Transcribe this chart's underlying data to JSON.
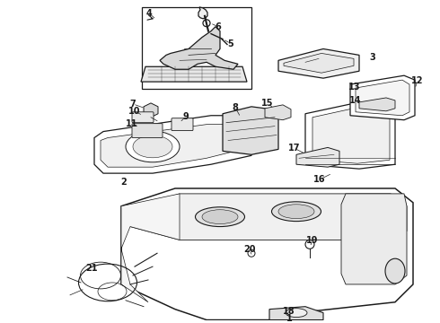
{
  "bg_color": "#ffffff",
  "line_color": "#1a1a1a",
  "fig_width": 4.9,
  "fig_height": 3.6,
  "dpi": 100,
  "label_fontsize": 7.0
}
